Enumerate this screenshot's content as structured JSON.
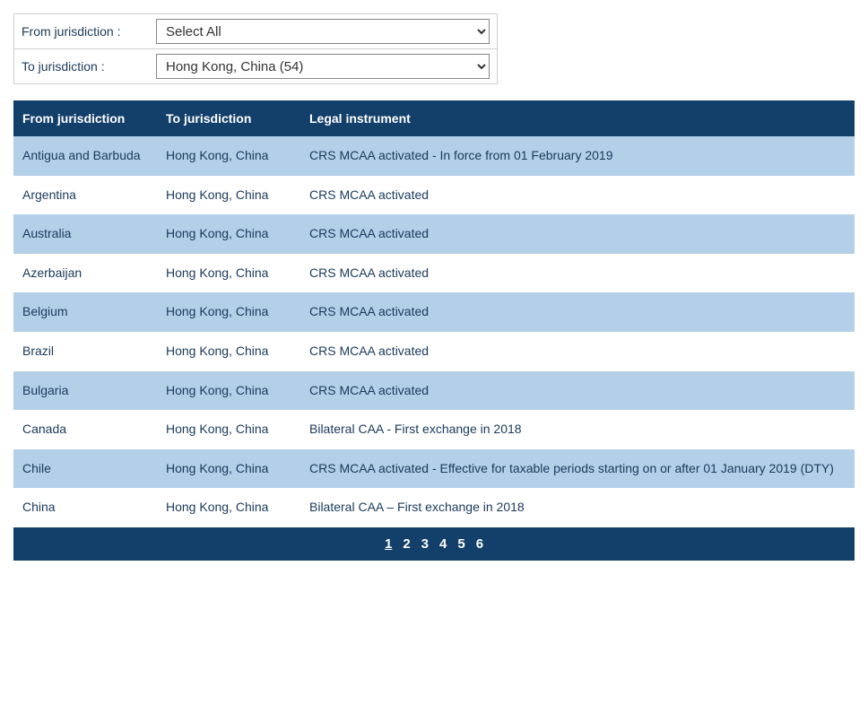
{
  "filters": {
    "from_label": "From jurisdiction :",
    "to_label": "To jurisdiction :",
    "from_value": "Select All",
    "to_value": "Hong Kong, China (54)"
  },
  "table": {
    "columns": [
      "From jurisdiction",
      "To jurisdiction",
      "Legal instrument"
    ],
    "rows": [
      {
        "from": "Antigua and Barbuda",
        "to": "Hong Kong, China",
        "instrument": "CRS MCAA activated - In force from 01 February 2019"
      },
      {
        "from": "Argentina",
        "to": "Hong Kong, China",
        "instrument": "CRS MCAA activated"
      },
      {
        "from": "Australia",
        "to": "Hong Kong, China",
        "instrument": "CRS MCAA activated"
      },
      {
        "from": "Azerbaijan",
        "to": "Hong Kong, China",
        "instrument": "CRS MCAA activated"
      },
      {
        "from": "Belgium",
        "to": "Hong Kong, China",
        "instrument": "CRS MCAA activated"
      },
      {
        "from": "Brazil",
        "to": "Hong Kong, China",
        "instrument": "CRS MCAA activated"
      },
      {
        "from": "Bulgaria",
        "to": "Hong Kong, China",
        "instrument": "CRS MCAA activated"
      },
      {
        "from": "Canada",
        "to": "Hong Kong, China",
        "instrument": "Bilateral CAA - First exchange in 2018"
      },
      {
        "from": "Chile",
        "to": "Hong Kong, China",
        "instrument": "CRS MCAA activated - Effective for taxable periods starting on or after 01 January 2019 (DTY)"
      },
      {
        "from": "China",
        "to": "Hong Kong, China",
        "instrument": "Bilateral CAA – First exchange in 2018"
      }
    ]
  },
  "pager": {
    "pages": [
      "1",
      "2",
      "3",
      "4",
      "5",
      "6"
    ],
    "current": "1"
  },
  "colors": {
    "header_bg": "#13406b",
    "row_odd_bg": "#b4cfe8",
    "row_even_bg": "#ffffff",
    "text": "#1a3a5c",
    "link": "#1a4d8f"
  }
}
